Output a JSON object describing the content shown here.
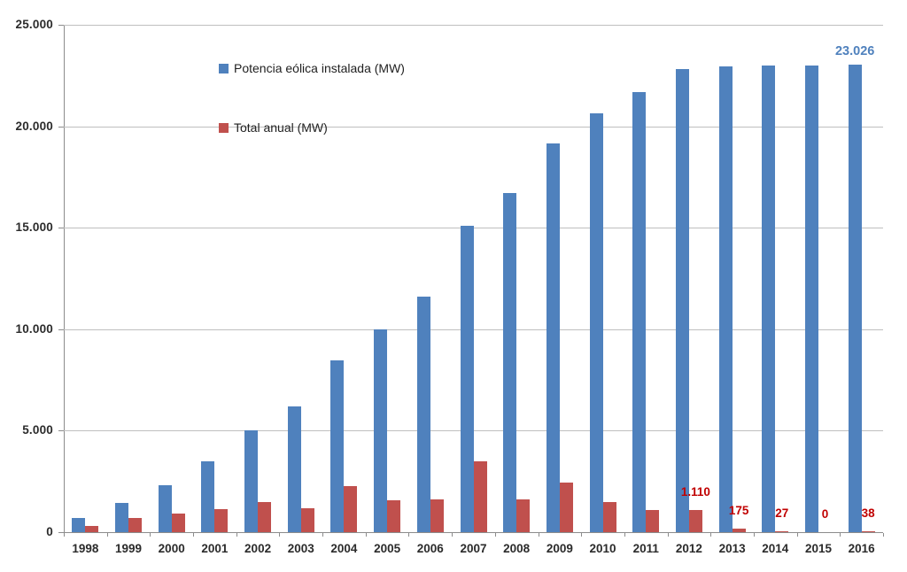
{
  "chart_data": {
    "type": "bar",
    "title": "",
    "xlabel": "",
    "ylabel": "",
    "grid": true,
    "legend_position": "inside-upper-left",
    "categories": [
      "1998",
      "1999",
      "2000",
      "2001",
      "2002",
      "2003",
      "2004",
      "2005",
      "2006",
      "2007",
      "2008",
      "2009",
      "2010",
      "2011",
      "2012",
      "2013",
      "2014",
      "2015",
      "2016"
    ],
    "series": [
      {
        "name": "Potencia eólica instalada (MW)",
        "color": "#4F81BD",
        "label_color": "#4F81BD",
        "values": [
          700,
          1450,
          2300,
          3500,
          5000,
          6200,
          8450,
          10000,
          11600,
          15100,
          16700,
          19150,
          20650,
          21700,
          22800,
          22950,
          23000,
          23000,
          23026
        ],
        "point_labels": [
          null,
          null,
          null,
          null,
          null,
          null,
          null,
          null,
          null,
          null,
          null,
          null,
          null,
          null,
          null,
          null,
          null,
          null,
          "23.026"
        ]
      },
      {
        "name": "Total anual (MW)",
        "color": "#C0504D",
        "label_color": "#C00000",
        "values": [
          300,
          700,
          900,
          1150,
          1500,
          1200,
          2250,
          1550,
          1600,
          3500,
          1600,
          2450,
          1500,
          1100,
          1110,
          175,
          27,
          0,
          38
        ],
        "point_labels": [
          null,
          null,
          null,
          null,
          null,
          null,
          null,
          null,
          null,
          null,
          null,
          null,
          null,
          null,
          "1.110",
          "175",
          "27",
          "0",
          "38"
        ]
      }
    ],
    "y_axis": {
      "min": 0,
      "max": 25000,
      "tick_step": 5000,
      "ticks": [
        {
          "v": 0,
          "label": "0"
        },
        {
          "v": 5000,
          "label": "5.000"
        },
        {
          "v": 10000,
          "label": "10.000"
        },
        {
          "v": 15000,
          "label": "15.000"
        },
        {
          "v": 20000,
          "label": "20.000"
        },
        {
          "v": 25000,
          "label": "25.000"
        }
      ]
    }
  }
}
